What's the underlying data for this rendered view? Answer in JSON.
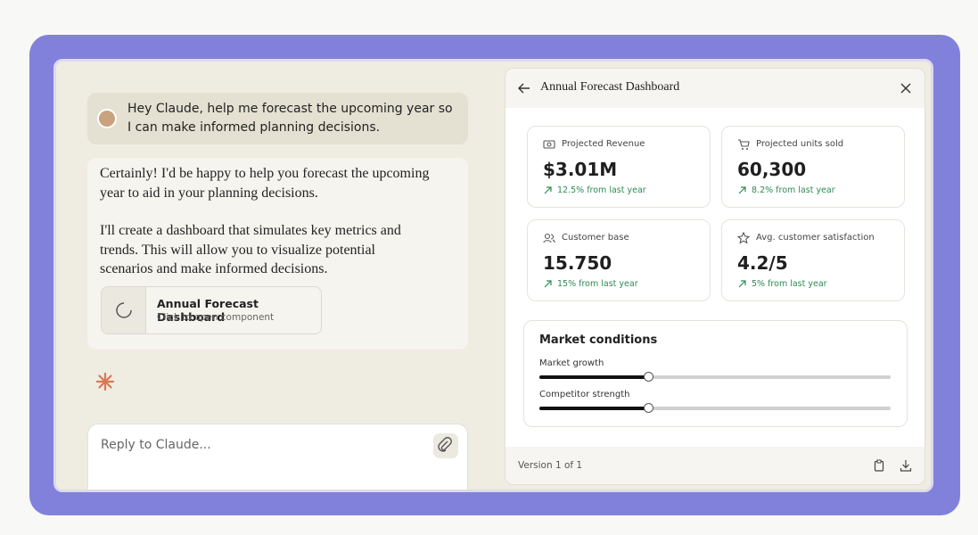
{
  "chat": {
    "user_message": "Hey Claude, help me forecast the upcoming year so I can make informed planning decisions.",
    "assistant_paragraphs": [
      "Certainly! I'd be happy to help you forecast the upcoming year to aid in your planning decisions.",
      "I'll create a dashboard that simulates key metrics and trends. This will allow you to visualize potential scenarios and make informed decisions."
    ],
    "artifact": {
      "title": "Annual Forecast Dashboard",
      "subtitle": "Click to open component"
    },
    "input_placeholder": "Reply to Claude..."
  },
  "panel": {
    "title": "Annual Forecast Dashboard",
    "metrics": [
      {
        "label": "Projected Revenue",
        "value": "$3.01M",
        "change": "12.5% from last year"
      },
      {
        "label": "Projected units sold",
        "value": "60,300",
        "change": "8.2% from last year"
      },
      {
        "label": "Customer base",
        "value": "15.750",
        "change": "15% from last year"
      },
      {
        "label": "Avg. customer satisfaction",
        "value": "4.2/5",
        "change": "5% from last year"
      }
    ],
    "market": {
      "title": "Market conditions",
      "sliders": [
        "Market growth",
        "Competitor strength"
      ]
    },
    "version": "Version 1 of 1"
  }
}
